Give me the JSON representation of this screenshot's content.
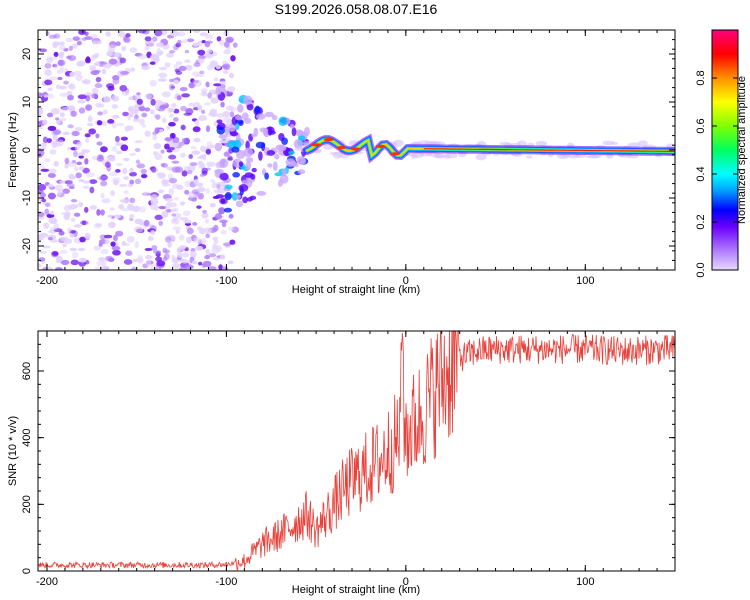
{
  "title": "S199.2026.058.08.07.E16",
  "chart_data": [
    {
      "type": "heatmap",
      "name": "spectrogram",
      "xlabel": "Height of straight line (km)",
      "ylabel": "Frequency (Hz)",
      "xlim": [
        -205,
        150
      ],
      "ylim": [
        -25,
        25
      ],
      "xticks": [
        "-200",
        "-100",
        "0",
        "100"
      ],
      "yticks": [
        "20",
        "10",
        "0",
        "-10",
        "-20"
      ],
      "colorbar": {
        "label": "Normalized spectral amplitude",
        "range": [
          0,
          1
        ],
        "ticks": [
          "0.0",
          "0.2",
          "0.4",
          "0.6",
          "0.8"
        ]
      }
    },
    {
      "type": "line",
      "name": "snr",
      "xlabel": "Height of straight line (km)",
      "ylabel": "SNR (10 * v/v)",
      "xlim": [
        -205,
        150
      ],
      "ylim": [
        0,
        720
      ],
      "xticks": [
        "-200",
        "-100",
        "0",
        "100"
      ],
      "yticks": [
        "0",
        "200",
        "400",
        "600"
      ],
      "color": "#e8403a",
      "series": [
        {
          "name": "SNR",
          "x": [
            -205,
            -110,
            -100,
            -90,
            -85,
            -80,
            -70,
            -60,
            -55,
            -50,
            -45,
            -40,
            -35,
            -30,
            -25,
            -20,
            -15,
            -10,
            -5,
            -2,
            0,
            5,
            10,
            15,
            20,
            25,
            30,
            40,
            50,
            60,
            80,
            100,
            120,
            150
          ],
          "y": [
            18,
            18,
            20,
            30,
            55,
            80,
            110,
            150,
            170,
            120,
            160,
            200,
            240,
            270,
            290,
            310,
            330,
            360,
            390,
            460,
            420,
            440,
            480,
            530,
            570,
            610,
            640,
            660,
            665,
            665,
            665,
            665,
            660,
            665
          ]
        }
      ]
    }
  ]
}
